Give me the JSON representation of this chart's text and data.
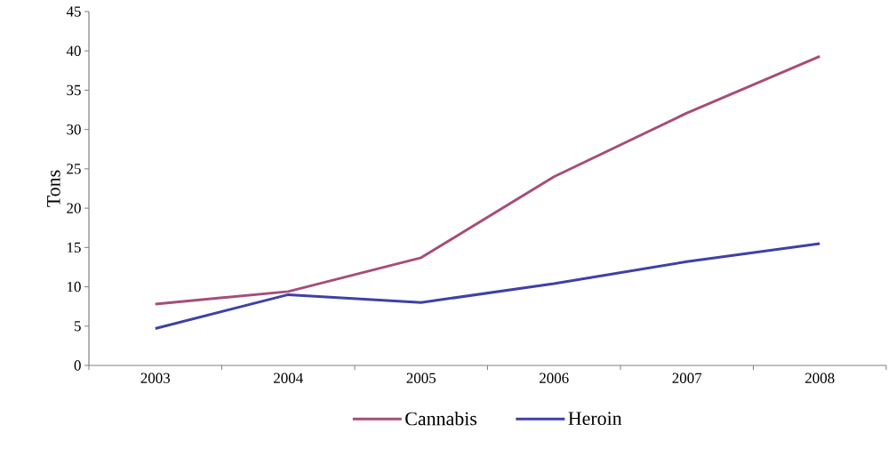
{
  "chart_data": {
    "type": "line",
    "ylabel": "Tons",
    "categories": [
      "2003",
      "2004",
      "2005",
      "2006",
      "2007",
      "2008"
    ],
    "series": [
      {
        "name": "Cannabis",
        "color": "#a64d79",
        "values": [
          7.8,
          9.4,
          13.7,
          24.0,
          32.1,
          39.3
        ]
      },
      {
        "name": "Heroin",
        "color": "#4040a8",
        "values": [
          4.7,
          9.0,
          8.0,
          10.4,
          13.2,
          15.5
        ]
      }
    ],
    "ylim": [
      0,
      45
    ],
    "yticks": [
      0,
      5,
      10,
      15,
      20,
      25,
      30,
      35,
      40,
      45
    ],
    "legend": "bottom",
    "grid": false,
    "marker": "none",
    "line_style": "solid"
  }
}
